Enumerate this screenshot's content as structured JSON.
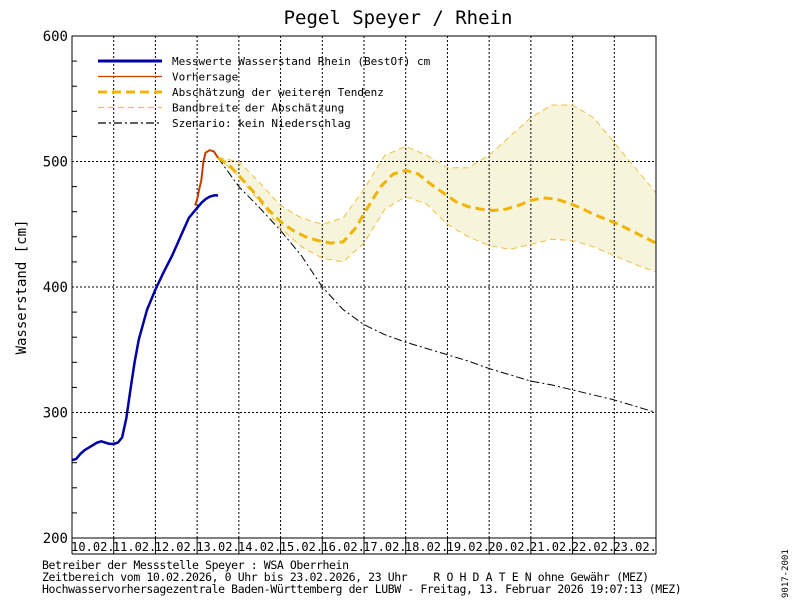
{
  "chart_data": {
    "type": "line",
    "title": "Pegel Speyer / Rhein",
    "ylabel": "Wasserstand [cm]",
    "xlabel": "",
    "ylim": [
      200,
      600
    ],
    "yticks": [
      200,
      300,
      400,
      500,
      600
    ],
    "grid": true,
    "legend_position": "top-left",
    "categories": [
      "10.02.",
      "11.02.",
      "12.02.",
      "13.02.",
      "14.02.",
      "15.02.",
      "16.02.",
      "17.02.",
      "18.02.",
      "19.02.",
      "20.02.",
      "21.02.",
      "22.02.",
      "23.02."
    ],
    "series": [
      {
        "name": "Messwerte Wasserstand Rhein (BestOf)   cm",
        "color": "#0000a8",
        "style": "solid",
        "x": [
          0,
          0.1,
          0.2,
          0.3,
          0.4,
          0.5,
          0.6,
          0.7,
          0.8,
          0.9,
          1.0,
          1.1,
          1.2,
          1.3,
          1.4,
          1.5,
          1.6,
          1.8,
          2.0,
          2.2,
          2.4,
          2.6,
          2.8,
          3.0,
          3.1,
          3.2,
          3.3,
          3.4,
          3.5
        ],
        "values": [
          262,
          263,
          267,
          270,
          272,
          274,
          276,
          277,
          276,
          275,
          275,
          276,
          280,
          295,
          318,
          340,
          358,
          382,
          398,
          412,
          425,
          440,
          455,
          463,
          467,
          470,
          472,
          473,
          473
        ]
      },
      {
        "name": "Vorhersage",
        "color": "#c83c00",
        "style": "solid",
        "x": [
          2.95,
          3.0,
          3.05,
          3.1,
          3.15,
          3.2,
          3.3,
          3.4,
          3.5
        ],
        "values": [
          465,
          470,
          478,
          485,
          500,
          507,
          509,
          508,
          503
        ]
      },
      {
        "name": "Abschätzung der weiteren Tendenz",
        "color": "#f0b400",
        "style": "dashed",
        "x": [
          3.5,
          3.8,
          4.1,
          4.4,
          4.7,
          5.0,
          5.3,
          5.6,
          5.9,
          6.2,
          6.5,
          6.8,
          7.1,
          7.4,
          7.7,
          8.0,
          8.3,
          8.6,
          8.9,
          9.2,
          9.5,
          9.8,
          10.1,
          10.4,
          10.7,
          11.0,
          11.3,
          11.6,
          11.9,
          12.2,
          12.5,
          12.8,
          13.1,
          13.4,
          13.7,
          14.0
        ],
        "values": [
          503,
          496,
          485,
          474,
          462,
          452,
          445,
          440,
          437,
          435,
          436,
          447,
          464,
          480,
          490,
          493,
          490,
          482,
          475,
          468,
          464,
          462,
          461,
          462,
          465,
          469,
          471,
          470,
          467,
          463,
          458,
          454,
          450,
          445,
          440,
          435
        ]
      },
      {
        "name": "Bandbreite der Abschätzung",
        "color": "#f0c040",
        "style": "dashed-thin",
        "x": [
          3.5,
          4.0,
          4.5,
          5.0,
          5.5,
          6.0,
          6.5,
          7.0,
          7.5,
          8.0,
          8.5,
          9.0,
          9.5,
          10.0,
          10.5,
          11.0,
          11.5,
          12.0,
          12.5,
          13.0,
          13.5,
          14.0
        ],
        "upper": [
          503,
          500,
          483,
          465,
          455,
          450,
          455,
          478,
          505,
          512,
          505,
          495,
          495,
          505,
          520,
          535,
          545,
          545,
          535,
          515,
          495,
          475
        ],
        "lower": [
          503,
          488,
          468,
          447,
          432,
          423,
          420,
          435,
          462,
          472,
          466,
          450,
          440,
          433,
          430,
          434,
          438,
          437,
          432,
          425,
          418,
          412
        ]
      },
      {
        "name": "Szenario: kein Niederschlag",
        "color": "#000000",
        "style": "dashdot",
        "x": [
          3.5,
          4.0,
          4.5,
          5.0,
          5.5,
          6.0,
          6.5,
          7.0,
          7.5,
          8.0,
          8.5,
          9.0,
          9.5,
          10.0,
          10.5,
          11.0,
          11.5,
          12.0,
          12.5,
          13.0,
          13.5,
          14.0
        ],
        "values": [
          503,
          480,
          463,
          445,
          425,
          400,
          382,
          370,
          362,
          356,
          351,
          346,
          341,
          335,
          330,
          325,
          322,
          318,
          314,
          310,
          305,
          300
        ]
      }
    ]
  },
  "footer": {
    "line1": "Betreiber der Messstelle Speyer : WSA Oberrhein",
    "line2": "Zeitbereich vom 10.02.2026, 0 Uhr bis 23.02.2026, 23 Uhr    R O H D A T E N ohne Gewähr (MEZ)",
    "line3": "Hochwasservorhersagezentrale Baden-Württemberg der LUBW - Freitag, 13. Februar 2026 19:07:13 (MEZ)",
    "side_id": "9017-2001"
  }
}
